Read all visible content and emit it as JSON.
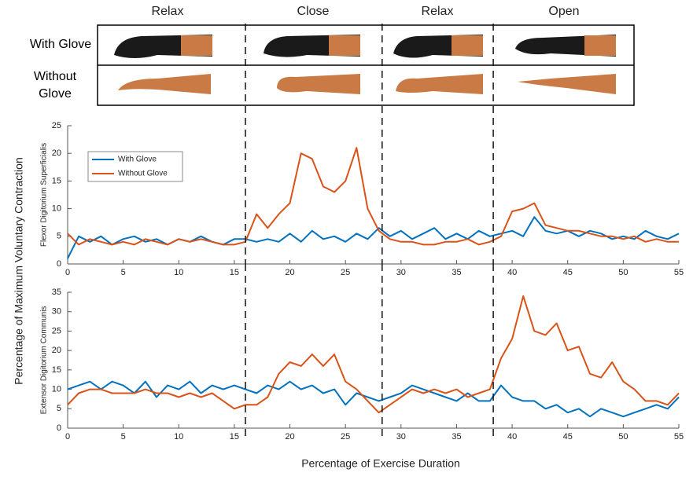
{
  "phases": [
    "Relax",
    "Close",
    "Relax",
    "Open"
  ],
  "rows": [
    "With Glove",
    "Without Glove"
  ],
  "ylabel": "Percentage of Maximum Voluntary Contraction",
  "xlabel": "Percentage of Exercise Duration",
  "chart_data": [
    {
      "type": "line",
      "ylabel": "Flexor Digitorium Superficialis",
      "x": [
        0,
        1,
        2,
        3,
        4,
        5,
        6,
        7,
        8,
        9,
        10,
        11,
        12,
        13,
        14,
        15,
        16,
        17,
        18,
        19,
        20,
        21,
        22,
        23,
        24,
        25,
        26,
        27,
        28,
        29,
        30,
        31,
        32,
        33,
        34,
        35,
        36,
        37,
        38,
        39,
        40,
        41,
        42,
        43,
        44,
        45,
        46,
        47,
        48,
        49,
        50,
        51,
        52,
        53,
        54,
        55
      ],
      "series": [
        {
          "name": "With Glove",
          "color": "#0072bd",
          "values": [
            1,
            5,
            4,
            5,
            3.5,
            4.5,
            5,
            4,
            4.5,
            3.5,
            4.5,
            4,
            5,
            4,
            3.5,
            4.5,
            4.5,
            4,
            4.5,
            4,
            5.5,
            4,
            6,
            4.5,
            5,
            4,
            5.5,
            4.5,
            6.5,
            5,
            6,
            4.5,
            5.5,
            6.5,
            4.5,
            5.5,
            4.5,
            6,
            5,
            5.5,
            6,
            5,
            8.5,
            6,
            5.5,
            6,
            5,
            6,
            5.5,
            4.5,
            5,
            4.5,
            6,
            5,
            4.5,
            5.5
          ]
        },
        {
          "name": "Without Glove",
          "color": "#d95319",
          "values": [
            5.5,
            3.5,
            4.5,
            4,
            3.5,
            4,
            3.5,
            4.5,
            4,
            3.5,
            4.5,
            4,
            4.5,
            4,
            3.5,
            3.5,
            4,
            9,
            6.5,
            9,
            11,
            20,
            19,
            14,
            13,
            15,
            21,
            10,
            6,
            4.5,
            4,
            4,
            3.5,
            3.5,
            4,
            4,
            4.5,
            3.5,
            4,
            5,
            9.5,
            10,
            11,
            7,
            6.5,
            6,
            6,
            5.5,
            5,
            5,
            4.5,
            5,
            4,
            4.5,
            4,
            4
          ]
        }
      ],
      "xlim": [
        0,
        55
      ],
      "ylim": [
        0,
        25
      ],
      "xticks": [
        0,
        5,
        10,
        15,
        20,
        25,
        30,
        35,
        40,
        45,
        50,
        55
      ],
      "yticks": [
        0,
        5,
        10,
        15,
        20,
        25
      ],
      "vlines": [
        16,
        28.3,
        38.3
      ],
      "legend": "upper left"
    },
    {
      "type": "line",
      "ylabel": "Extensor Digitorium Communis",
      "x": [
        0,
        1,
        2,
        3,
        4,
        5,
        6,
        7,
        8,
        9,
        10,
        11,
        12,
        13,
        14,
        15,
        16,
        17,
        18,
        19,
        20,
        21,
        22,
        23,
        24,
        25,
        26,
        27,
        28,
        29,
        30,
        31,
        32,
        33,
        34,
        35,
        36,
        37,
        38,
        39,
        40,
        41,
        42,
        43,
        44,
        45,
        46,
        47,
        48,
        49,
        50,
        51,
        52,
        53,
        54,
        55
      ],
      "series": [
        {
          "name": "With Glove",
          "color": "#0072bd",
          "values": [
            10,
            11,
            12,
            10,
            12,
            11,
            9,
            12,
            8,
            11,
            10,
            12,
            9,
            11,
            10,
            11,
            10,
            9,
            11,
            10,
            12,
            10,
            11,
            9,
            10,
            6,
            9,
            8,
            7,
            8,
            9,
            11,
            10,
            9,
            8,
            7,
            9,
            7,
            7,
            11,
            8,
            7,
            7,
            5,
            6,
            4,
            5,
            3,
            5,
            4,
            3,
            4,
            5,
            6,
            5,
            8
          ]
        },
        {
          "name": "Without Glove",
          "color": "#d95319",
          "values": [
            6,
            9,
            10,
            10,
            9,
            9,
            9,
            10,
            9,
            9,
            8,
            9,
            8,
            9,
            7,
            5,
            6,
            6,
            8,
            14,
            17,
            16,
            19,
            16,
            19,
            12,
            10,
            7,
            4,
            6,
            8,
            10,
            9,
            10,
            9,
            10,
            8,
            9,
            10,
            18,
            23,
            34,
            25,
            24,
            27,
            20,
            21,
            14,
            13,
            17,
            12,
            10,
            7,
            7,
            6,
            9
          ]
        }
      ],
      "xlim": [
        0,
        55
      ],
      "ylim": [
        0,
        35
      ],
      "xticks": [
        0,
        5,
        10,
        15,
        20,
        25,
        30,
        35,
        40,
        45,
        50,
        55
      ],
      "yticks": [
        0,
        5,
        10,
        15,
        20,
        25,
        30,
        35
      ],
      "vlines": [
        16,
        28.3,
        38.3
      ]
    }
  ]
}
